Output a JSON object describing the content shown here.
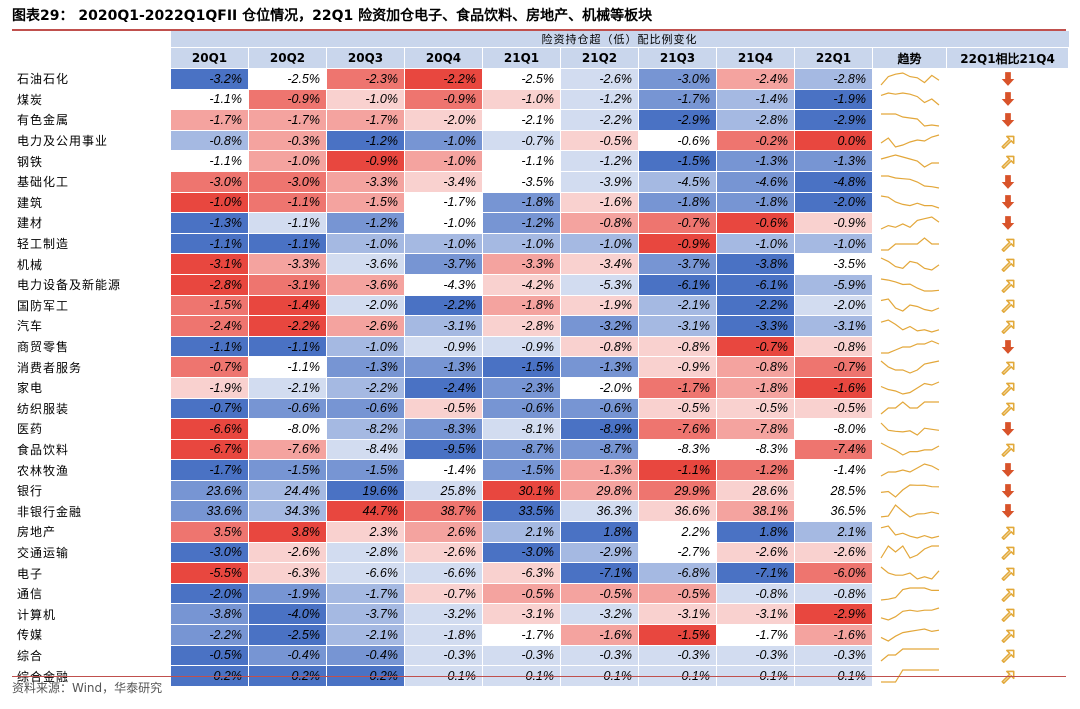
{
  "title": "图表29： 2020Q1-2022Q1QFII 仓位情况，22Q1 险资加仓电子、食品饮料、房地产、机械等板块",
  "sublabel": "险资持仓超（低）配比例变化",
  "headers": [
    "20Q1",
    "20Q2",
    "20Q3",
    "20Q4",
    "21Q1",
    "21Q2",
    "21Q3",
    "21Q4",
    "22Q1",
    "趋势",
    "22Q1相比21Q4"
  ],
  "rows": [
    {
      "name": "石油石化",
      "values": [
        -3.2,
        -2.5,
        -2.3,
        -2.2,
        -2.5,
        -2.6,
        -3.0,
        -2.4,
        -2.8
      ],
      "dir": "down"
    },
    {
      "name": "煤炭",
      "values": [
        -1.1,
        -0.9,
        -1.0,
        -0.9,
        -1.0,
        -1.2,
        -1.7,
        -1.4,
        -1.9
      ],
      "dir": "down"
    },
    {
      "name": "有色金属",
      "values": [
        -1.7,
        -1.7,
        -1.7,
        -2.0,
        -2.1,
        -2.2,
        -2.9,
        -2.8,
        -2.9
      ],
      "dir": "down"
    },
    {
      "name": "电力及公用事业",
      "values": [
        -0.8,
        -0.3,
        -1.2,
        -1.0,
        -0.7,
        -0.5,
        -0.6,
        -0.2,
        0.0
      ],
      "dir": "up"
    },
    {
      "name": "钢铁",
      "values": [
        -1.1,
        -1.0,
        -0.9,
        -1.0,
        -1.1,
        -1.2,
        -1.5,
        -1.3,
        -1.3
      ],
      "dir": "up"
    },
    {
      "name": "基础化工",
      "values": [
        -3.0,
        -3.0,
        -3.3,
        -3.4,
        -3.5,
        -3.9,
        -4.5,
        -4.6,
        -4.8
      ],
      "dir": "down"
    },
    {
      "name": "建筑",
      "values": [
        -1.0,
        -1.1,
        -1.5,
        -1.7,
        -1.8,
        -1.6,
        -1.8,
        -1.8,
        -2.0
      ],
      "dir": "down"
    },
    {
      "name": "建材",
      "values": [
        -1.3,
        -1.1,
        -1.2,
        -1.0,
        -1.2,
        -0.8,
        -0.7,
        -0.6,
        -0.9
      ],
      "dir": "down"
    },
    {
      "name": "轻工制造",
      "values": [
        -1.1,
        -1.1,
        -1.0,
        -1.0,
        -1.0,
        -1.0,
        -0.9,
        -1.0,
        -1.0
      ],
      "dir": "up"
    },
    {
      "name": "机械",
      "values": [
        -3.1,
        -3.3,
        -3.6,
        -3.7,
        -3.3,
        -3.4,
        -3.7,
        -3.8,
        -3.5
      ],
      "dir": "up"
    },
    {
      "name": "电力设备及新能源",
      "values": [
        -2.8,
        -3.1,
        -3.6,
        -4.3,
        -4.2,
        -5.3,
        -6.1,
        -6.1,
        -5.9
      ],
      "dir": "up"
    },
    {
      "name": "国防军工",
      "values": [
        -1.5,
        -1.4,
        -2.0,
        -2.2,
        -1.8,
        -1.9,
        -2.1,
        -2.2,
        -2.0
      ],
      "dir": "up"
    },
    {
      "name": "汽车",
      "values": [
        -2.4,
        -2.2,
        -2.6,
        -3.1,
        -2.8,
        -3.2,
        -3.1,
        -3.3,
        -3.1
      ],
      "dir": "up"
    },
    {
      "name": "商贸零售",
      "values": [
        -1.1,
        -1.1,
        -1.0,
        -0.9,
        -0.9,
        -0.8,
        -0.8,
        -0.7,
        -0.8
      ],
      "dir": "down"
    },
    {
      "name": "消费者服务",
      "values": [
        -0.7,
        -1.1,
        -1.3,
        -1.3,
        -1.5,
        -1.3,
        -0.9,
        -0.8,
        -0.7
      ],
      "dir": "up"
    },
    {
      "name": "家电",
      "values": [
        -1.9,
        -2.1,
        -2.2,
        -2.4,
        -2.3,
        -2.0,
        -1.7,
        -1.8,
        -1.6
      ],
      "dir": "up"
    },
    {
      "name": "纺织服装",
      "values": [
        -0.7,
        -0.6,
        -0.6,
        -0.5,
        -0.6,
        -0.6,
        -0.5,
        -0.5,
        -0.5
      ],
      "dir": "up"
    },
    {
      "name": "医药",
      "values": [
        -6.6,
        -8.0,
        -8.2,
        -8.3,
        -8.1,
        -8.9,
        -7.6,
        -7.8,
        -8.0
      ],
      "dir": "down"
    },
    {
      "name": "食品饮料",
      "values": [
        -6.7,
        -7.6,
        -8.4,
        -9.5,
        -8.7,
        -8.7,
        -8.3,
        -8.3,
        -7.4
      ],
      "dir": "up"
    },
    {
      "name": "农林牧渔",
      "values": [
        -1.7,
        -1.5,
        -1.5,
        -1.4,
        -1.5,
        -1.3,
        -1.1,
        -1.2,
        -1.4
      ],
      "dir": "down"
    },
    {
      "name": "银行",
      "values": [
        23.6,
        24.4,
        19.6,
        25.8,
        30.1,
        29.8,
        29.9,
        28.6,
        28.5
      ],
      "dir": "down"
    },
    {
      "name": "非银行金融",
      "values": [
        33.6,
        34.3,
        44.7,
        38.7,
        33.5,
        36.3,
        36.6,
        38.1,
        36.5
      ],
      "dir": "down"
    },
    {
      "name": "房地产",
      "values": [
        3.5,
        3.8,
        2.3,
        2.6,
        2.1,
        1.8,
        2.2,
        1.8,
        2.1
      ],
      "dir": "up"
    },
    {
      "name": "交通运输",
      "values": [
        -3.0,
        -2.6,
        -2.8,
        -2.6,
        -3.0,
        -2.9,
        -2.7,
        -2.6,
        -2.6
      ],
      "dir": "up"
    },
    {
      "name": "电子",
      "values": [
        -5.5,
        -6.3,
        -6.6,
        -6.6,
        -6.3,
        -7.1,
        -6.8,
        -7.1,
        -6.0
      ],
      "dir": "up"
    },
    {
      "name": "通信",
      "values": [
        -2.0,
        -1.9,
        -1.7,
        -0.7,
        -0.5,
        -0.5,
        -0.5,
        -0.8,
        -0.8
      ],
      "dir": "up"
    },
    {
      "name": "计算机",
      "values": [
        -3.8,
        -4.0,
        -3.7,
        -3.2,
        -3.1,
        -3.2,
        -3.1,
        -3.1,
        -2.9
      ],
      "dir": "up"
    },
    {
      "name": "传媒",
      "values": [
        -2.2,
        -2.5,
        -2.1,
        -1.8,
        -1.7,
        -1.6,
        -1.5,
        -1.7,
        -1.6
      ],
      "dir": "up"
    },
    {
      "name": "综合",
      "values": [
        -0.5,
        -0.4,
        -0.4,
        -0.3,
        -0.3,
        -0.3,
        -0.3,
        -0.3,
        -0.3
      ],
      "dir": "up"
    },
    {
      "name": "综合金融",
      "values": [
        -0.2,
        -0.2,
        -0.2,
        -0.1,
        -0.1,
        -0.1,
        -0.1,
        -0.1,
        -0.1
      ],
      "dir": "up"
    }
  ],
  "colors": {
    "red": "#e8473f",
    "blue": "#4a72c4",
    "trend_line": "#e3a73a",
    "arrow_down": "#d8532a",
    "arrow_up": "#e2a93a",
    "title_rule": "#c0504d",
    "header_bg": "#c9d6ec"
  },
  "footer": "资料来源：Wind，华泰研究"
}
